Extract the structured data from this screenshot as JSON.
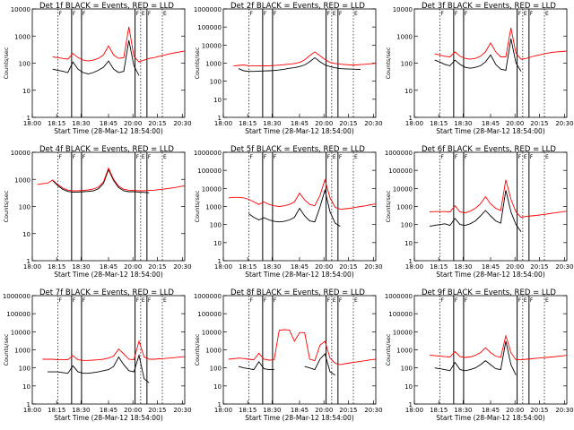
{
  "colors": {
    "events": "#000000",
    "lld": "#ff0000",
    "frame": "#000000",
    "background": "#ffffff"
  },
  "x_tick_labels": [
    "18:00",
    "18:15",
    "18:30",
    "18:45",
    "20:00",
    "20:15",
    "20:30"
  ],
  "x_label": "Start Time (28-Mar-12 18:54:00)",
  "y_label": "Counts/sec",
  "marker_letters": [
    "F",
    "F",
    "F",
    "F",
    "E",
    "F",
    "E"
  ],
  "chart_data": [
    {
      "type": "line",
      "title": "Det 1f BLACK = Events, RED = LLD",
      "log_scale": true,
      "ylim": [
        1,
        10000
      ],
      "y_ticks": [
        "1",
        "10",
        "100",
        "1000",
        "10000"
      ],
      "xlim": [
        0,
        90
      ],
      "x": [
        9,
        12,
        15,
        18,
        21,
        24,
        27,
        30,
        33,
        36,
        39,
        42,
        45,
        48,
        51,
        54,
        57,
        60,
        63,
        66,
        69,
        72,
        75,
        78,
        81,
        84,
        87,
        90
      ],
      "series": [
        {
          "name": "Events",
          "values": [
            null,
            60,
            55,
            50,
            45,
            110,
            60,
            45,
            40,
            45,
            55,
            70,
            120,
            60,
            45,
            50,
            700,
            80,
            35,
            null,
            null,
            null,
            null,
            null,
            null,
            null,
            null,
            null
          ]
        },
        {
          "name": "LLD",
          "values": [
            null,
            170,
            160,
            150,
            140,
            230,
            160,
            130,
            120,
            130,
            150,
            200,
            430,
            200,
            150,
            160,
            2200,
            180,
            110,
            130,
            150,
            160,
            180,
            200,
            220,
            240,
            260,
            280
          ]
        }
      ]
    },
    {
      "type": "line",
      "title": "Det 2f BLACK = Events, RED = LLD",
      "log_scale": true,
      "ylim": [
        1,
        1000000
      ],
      "y_ticks": [
        "1",
        "10",
        "100",
        "1000",
        "10000",
        "100000",
        "1000000"
      ],
      "xlim": [
        0,
        90
      ],
      "x": [
        6,
        9,
        12,
        15,
        18,
        21,
        24,
        27,
        30,
        33,
        36,
        39,
        42,
        45,
        48,
        51,
        54,
        57,
        60,
        63,
        66,
        69,
        72,
        75,
        78,
        81,
        84,
        87,
        90
      ],
      "series": [
        {
          "name": "Events",
          "values": [
            null,
            500,
            380,
            350,
            350,
            360,
            370,
            380,
            390,
            420,
            460,
            520,
            560,
            650,
            800,
            1200,
            2000,
            1200,
            800,
            650,
            550,
            500,
            480,
            470,
            460,
            450,
            null,
            null,
            null
          ]
        },
        {
          "name": "LLD",
          "values": [
            700,
            750,
            800,
            720,
            700,
            700,
            710,
            720,
            740,
            780,
            820,
            880,
            950,
            1100,
            1500,
            2600,
            4200,
            2600,
            1600,
            1100,
            950,
            880,
            830,
            800,
            800,
            830,
            870,
            920,
            980
          ]
        }
      ]
    },
    {
      "type": "line",
      "title": "Det 3f BLACK = Events, RED = LLD",
      "log_scale": true,
      "ylim": [
        1,
        10000
      ],
      "y_ticks": [
        "1",
        "10",
        "100",
        "1000",
        "10000"
      ],
      "xlim": [
        0,
        90
      ],
      "x": [
        12,
        15,
        18,
        21,
        24,
        27,
        30,
        33,
        36,
        39,
        42,
        45,
        48,
        51,
        54,
        57,
        60,
        63,
        66,
        69,
        72,
        75,
        78,
        81,
        84,
        87,
        90
      ],
      "series": [
        {
          "name": "Events",
          "values": [
            130,
            110,
            90,
            80,
            130,
            90,
            70,
            65,
            70,
            80,
            110,
            200,
            90,
            60,
            55,
            800,
            100,
            50,
            null,
            null,
            null,
            null,
            null,
            null,
            null,
            null,
            null
          ]
        },
        {
          "name": "LLD",
          "values": [
            220,
            200,
            180,
            170,
            260,
            180,
            150,
            140,
            150,
            180,
            260,
            560,
            260,
            170,
            170,
            2000,
            230,
            140,
            150,
            170,
            190,
            210,
            230,
            250,
            260,
            270,
            280
          ]
        }
      ]
    },
    {
      "type": "line",
      "title": "Det 4f BLACK = Events, RED = LLD",
      "log_scale": true,
      "ylim": [
        1,
        10000
      ],
      "y_ticks": [
        "1",
        "10",
        "100",
        "1000",
        "10000"
      ],
      "xlim": [
        0,
        90
      ],
      "x": [
        3,
        6,
        9,
        12,
        15,
        18,
        21,
        24,
        27,
        30,
        33,
        36,
        39,
        42,
        45,
        48,
        51,
        54,
        57,
        60,
        63,
        66,
        69,
        72,
        75,
        78,
        81,
        84,
        87,
        90
      ],
      "series": [
        {
          "name": "Events",
          "values": [
            null,
            null,
            null,
            900,
            600,
            430,
            360,
            340,
            340,
            350,
            360,
            380,
            450,
            700,
            2300,
            900,
            500,
            380,
            350,
            350,
            340,
            330,
            320,
            null,
            null,
            null,
            null,
            null,
            null,
            null
          ]
        },
        {
          "name": "LLD",
          "values": [
            650,
            700,
            720,
            950,
            650,
            480,
            400,
            380,
            380,
            390,
            410,
            440,
            520,
            800,
            2600,
            1000,
            560,
            430,
            400,
            390,
            380,
            380,
            390,
            400,
            420,
            440,
            470,
            500,
            540,
            580
          ]
        }
      ]
    },
    {
      "type": "line",
      "title": "Det 5f BLACK = Events, RED = LLD",
      "log_scale": true,
      "ylim": [
        1,
        1000000
      ],
      "y_ticks": [
        "1",
        "10",
        "100",
        "1000",
        "10000",
        "100000",
        "1000000"
      ],
      "xlim": [
        0,
        90
      ],
      "x": [
        3,
        6,
        9,
        12,
        15,
        18,
        21,
        24,
        27,
        30,
        33,
        36,
        39,
        42,
        45,
        48,
        51,
        54,
        57,
        60,
        63,
        66,
        69,
        72,
        75,
        78,
        81,
        84,
        87,
        90
      ],
      "series": [
        {
          "name": "Events",
          "values": [
            null,
            null,
            null,
            null,
            400,
            250,
            180,
            240,
            180,
            150,
            140,
            150,
            180,
            250,
            800,
            300,
            160,
            140,
            900,
            8000,
            500,
            120,
            80,
            null,
            null,
            null,
            null,
            null,
            null,
            null
          ]
        },
        {
          "name": "LLD",
          "values": [
            3000,
            3200,
            3200,
            3000,
            2500,
            1800,
            1300,
            1800,
            1300,
            1100,
            1000,
            1100,
            1300,
            1800,
            5500,
            2300,
            1300,
            1100,
            4000,
            30000,
            3000,
            900,
            700,
            750,
            800,
            900,
            1000,
            1100,
            1250,
            1400
          ]
        }
      ]
    },
    {
      "type": "line",
      "title": "Det 6f BLACK = Events, RED = LLD",
      "log_scale": true,
      "ylim": [
        1,
        1000000
      ],
      "y_ticks": [
        "1",
        "10",
        "100",
        "1000",
        "10000",
        "100000",
        "1000000"
      ],
      "xlim": [
        0,
        90
      ],
      "x": [
        9,
        12,
        15,
        18,
        21,
        24,
        27,
        30,
        33,
        36,
        39,
        42,
        45,
        48,
        51,
        54,
        57,
        60,
        63,
        66,
        69,
        72,
        75,
        78,
        81,
        84,
        87,
        90
      ],
      "series": [
        {
          "name": "Events",
          "values": [
            80,
            90,
            100,
            110,
            90,
            220,
            100,
            90,
            110,
            160,
            300,
            600,
            300,
            160,
            120,
            8000,
            500,
            100,
            40,
            null,
            null,
            null,
            null,
            null,
            null,
            null,
            null,
            null
          ]
        },
        {
          "name": "LLD",
          "values": [
            500,
            520,
            520,
            520,
            500,
            1100,
            500,
            450,
            550,
            800,
            1400,
            3500,
            1400,
            800,
            600,
            30000,
            2500,
            500,
            250,
            280,
            300,
            320,
            350,
            380,
            420,
            460,
            500,
            550
          ]
        }
      ]
    },
    {
      "type": "line",
      "title": "Det 7f BLACK = Events, RED = LLD",
      "log_scale": true,
      "ylim": [
        1,
        1000000
      ],
      "y_ticks": [
        "1",
        "10",
        "100",
        "1000",
        "10000",
        "100000",
        "1000000"
      ],
      "xlim": [
        0,
        90
      ],
      "x": [
        6,
        9,
        12,
        15,
        18,
        21,
        24,
        27,
        30,
        33,
        36,
        39,
        42,
        45,
        48,
        51,
        54,
        57,
        60,
        63,
        66,
        69,
        72,
        75,
        78,
        81,
        84,
        87,
        90
      ],
      "series": [
        {
          "name": "Events",
          "values": [
            null,
            60,
            60,
            60,
            55,
            50,
            130,
            60,
            50,
            50,
            55,
            60,
            70,
            80,
            120,
            400,
            150,
            70,
            60,
            500,
            25,
            15,
            null,
            null,
            null,
            null,
            null,
            null,
            null
          ]
        },
        {
          "name": "LLD",
          "values": [
            300,
            300,
            300,
            280,
            280,
            280,
            480,
            280,
            260,
            260,
            270,
            280,
            300,
            350,
            450,
            1100,
            600,
            300,
            280,
            3000,
            400,
            300,
            300,
            320,
            330,
            350,
            370,
            390,
            420
          ]
        }
      ]
    },
    {
      "type": "line",
      "title": "Det 8f BLACK = Events, RED = LLD",
      "log_scale": true,
      "ylim": [
        1,
        1000000
      ],
      "y_ticks": [
        "1",
        "10",
        "100",
        "1000",
        "10000",
        "100000",
        "1000000"
      ],
      "xlim": [
        0,
        90
      ],
      "x": [
        3,
        6,
        9,
        12,
        15,
        18,
        21,
        24,
        27,
        30,
        33,
        36,
        39,
        42,
        45,
        48,
        51,
        54,
        57,
        60,
        63,
        66,
        69,
        72,
        75,
        78,
        81,
        84,
        87,
        90
      ],
      "series": [
        {
          "name": "Events",
          "values": [
            null,
            null,
            120,
            100,
            90,
            80,
            220,
            90,
            80,
            80,
            null,
            null,
            null,
            null,
            null,
            120,
            100,
            80,
            300,
            600,
            60,
            40,
            null,
            null,
            null,
            null,
            null,
            null,
            null,
            null
          ]
        },
        {
          "name": "LLD",
          "values": [
            300,
            320,
            350,
            330,
            300,
            280,
            650,
            300,
            270,
            280,
            12000,
            13000,
            12500,
            3000,
            9000,
            9000,
            300,
            250,
            1800,
            3000,
            350,
            180,
            150,
            170,
            190,
            210,
            230,
            250,
            280,
            300
          ]
        }
      ]
    },
    {
      "type": "line",
      "title": "Det 9f BLACK = Events, RED = LLD",
      "log_scale": true,
      "ylim": [
        1,
        1000000
      ],
      "y_ticks": [
        "1",
        "10",
        "100",
        "1000",
        "10000",
        "100000",
        "1000000"
      ],
      "xlim": [
        0,
        90
      ],
      "x": [
        9,
        12,
        15,
        18,
        21,
        24,
        27,
        30,
        33,
        36,
        39,
        42,
        45,
        48,
        51,
        54,
        57,
        60,
        63,
        66,
        69,
        72,
        75,
        78,
        81,
        84,
        87,
        90
      ],
      "series": [
        {
          "name": "Events",
          "values": [
            null,
            100,
            90,
            80,
            70,
            200,
            80,
            70,
            80,
            100,
            150,
            250,
            150,
            90,
            80,
            3000,
            150,
            40,
            null,
            null,
            null,
            null,
            null,
            null,
            null,
            null,
            null,
            null
          ]
        },
        {
          "name": "LLD",
          "values": [
            500,
            480,
            450,
            420,
            400,
            800,
            420,
            380,
            400,
            500,
            700,
            1300,
            700,
            450,
            380,
            6000,
            700,
            280,
            280,
            300,
            320,
            340,
            360,
            380,
            400,
            430,
            460,
            500
          ]
        }
      ]
    }
  ]
}
